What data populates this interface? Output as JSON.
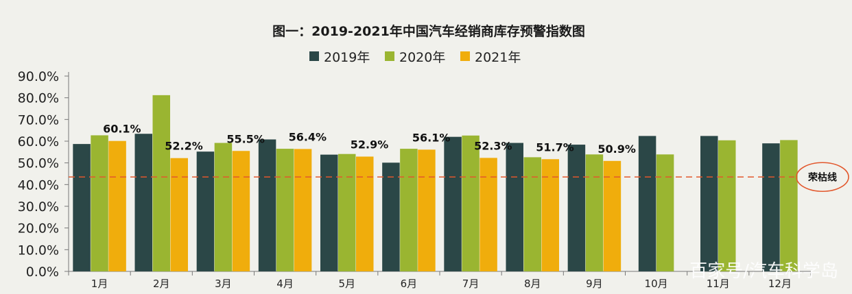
{
  "chart_data": {
    "type": "bar",
    "title": "图一：2019-2021年中国汽车经销商库存预警指数图",
    "categories": [
      "1月",
      "2月",
      "3月",
      "4月",
      "5月",
      "6月",
      "7月",
      "8月",
      "9月",
      "10月",
      "11月",
      "12月"
    ],
    "series": [
      {
        "name": "2019年",
        "color": "#2b4747",
        "values": [
          58.7,
          63.4,
          55.2,
          60.8,
          53.8,
          50.1,
          62.0,
          59.2,
          58.4,
          62.4,
          62.4,
          59.0
        ]
      },
      {
        "name": "2020年",
        "color": "#9ab531",
        "values": [
          62.7,
          81.2,
          59.2,
          56.5,
          54.1,
          56.5,
          62.6,
          52.6,
          53.9,
          53.9,
          60.4,
          60.5
        ]
      },
      {
        "name": "2021年",
        "color": "#f0ad0c",
        "values": [
          60.1,
          52.2,
          55.5,
          56.4,
          52.9,
          56.1,
          52.3,
          51.7,
          50.9,
          null,
          null,
          null
        ]
      }
    ],
    "data_labels": [
      "60.1%",
      "52.2%",
      "55.5%",
      "56.4%",
      "52.9%",
      "56.1%",
      "52.3%",
      "51.7%",
      "50.9%"
    ],
    "y_ticks": [
      "0.0%",
      "10.0%",
      "20.0%",
      "30.0%",
      "40.0%",
      "50.0%",
      "60.0%",
      "70.0%",
      "80.0%",
      "90.0%"
    ],
    "ylim": [
      0,
      90
    ],
    "legend_position": "top-center",
    "reference_line": {
      "value": 43.5,
      "label": "荣枯线",
      "color": "#e2572c"
    }
  },
  "watermark": "百家号/汽车科学岛"
}
